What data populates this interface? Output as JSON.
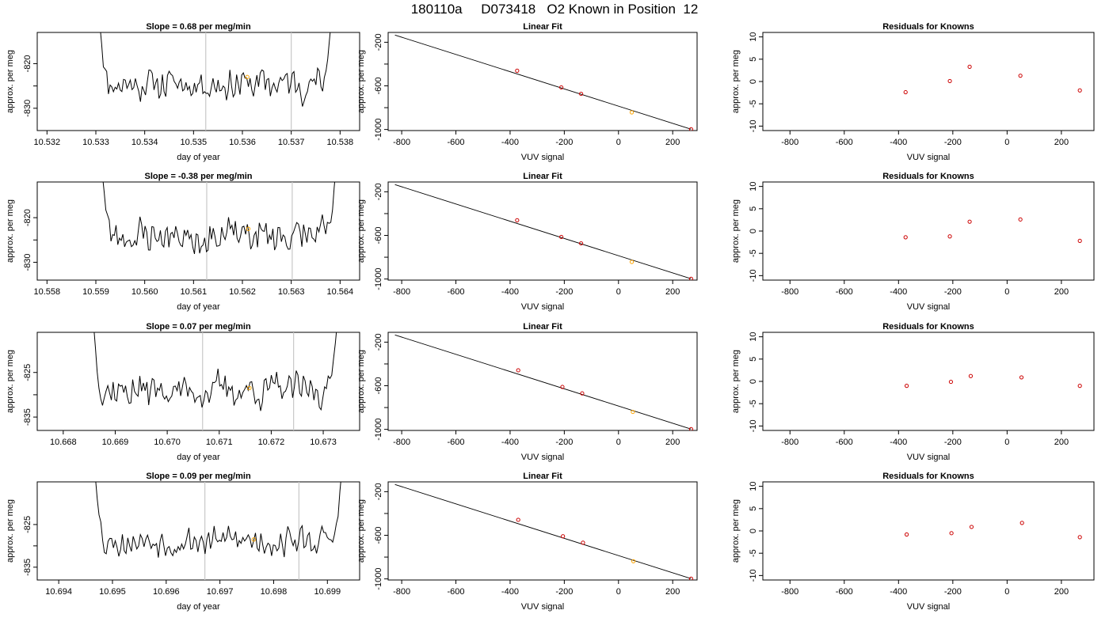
{
  "title": "180110a     D073418   O2 Known in Position  12",
  "colors": {
    "trace": "#000000",
    "marker": "#ffa500",
    "residual_points": "#cc0000",
    "fit_line": "#000000",
    "window_lines": "#c8c8c8",
    "frame": "#000000"
  },
  "chart_data": [
    {
      "type": "line",
      "row": 1,
      "col": 1,
      "title": "Slope =  0.68  per meg/min",
      "xlabel": "day of year",
      "ylabel": "approx. per meg",
      "xlim": [
        10.5318,
        10.5384
      ],
      "ylim": [
        -835,
        -813
      ],
      "xticks": [
        10.532,
        10.533,
        10.534,
        10.535,
        10.536,
        10.537,
        10.538
      ],
      "xtick_labels": [
        "10.532",
        "10.533",
        "10.534",
        "10.535",
        "10.536",
        "10.537",
        "10.538"
      ],
      "yticks": [
        -830,
        -825,
        -820
      ],
      "ytick_labels": [
        "-830",
        "",
        "-820"
      ],
      "window_lines_x": [
        10.53525,
        10.537
      ],
      "marker": {
        "x": 10.5361,
        "y": -823
      },
      "trace": {
        "start_x": 10.53305,
        "end_x": 10.53785,
        "n": 140,
        "mean": -824.5,
        "amplitude": 2.6,
        "seed": 11,
        "edge": "pre"
      }
    },
    {
      "type": "line",
      "row": 1,
      "col": 2,
      "title": "Linear Fit",
      "xlabel": "VUV signal",
      "ylabel": "approx. per meg",
      "xlim": [
        -850,
        290
      ],
      "ylim": [
        -1010,
        -110
      ],
      "xticks": [
        -800,
        -600,
        -400,
        -200,
        0,
        200
      ],
      "xtick_labels": [
        "-800",
        "-600",
        "-400",
        "-200",
        "0",
        "200"
      ],
      "yticks": [
        -1000,
        -800,
        -600,
        -400,
        -200
      ],
      "ytick_labels": [
        "-1000",
        "",
        "-600",
        "",
        "-200"
      ],
      "fit_line": {
        "x": [
          -825,
          268
        ],
        "y": [
          -134,
          -998
        ]
      },
      "points": {
        "x": [
          -374,
          -211,
          -138,
          49,
          268
        ],
        "y": [
          -461,
          -614,
          -673,
          -843,
          -998
        ]
      },
      "highlight_index": 3
    },
    {
      "type": "scatter",
      "row": 1,
      "col": 3,
      "title": "Residuals for Knowns",
      "xlabel": "VUV signal",
      "ylabel": "approx. per meg",
      "xlim": [
        -900,
        320
      ],
      "ylim": [
        -11,
        11
      ],
      "xticks": [
        -800,
        -600,
        -400,
        -200,
        0,
        200
      ],
      "xtick_labels": [
        "-800",
        "-600",
        "-400",
        "-200",
        "0",
        "200"
      ],
      "yticks": [
        -10,
        -5,
        0,
        5,
        10
      ],
      "ytick_labels": [
        "-10",
        "-5",
        "0",
        "5",
        "10"
      ],
      "points": {
        "x": [
          -374,
          -211,
          -138,
          49,
          268
        ],
        "y": [
          -2.4,
          0.1,
          3.3,
          1.3,
          -2.0
        ]
      }
    },
    {
      "type": "line",
      "row": 2,
      "col": 1,
      "title": "Slope =  -0.38  per meg/min",
      "xlabel": "day of year",
      "ylabel": "approx. per meg",
      "xlim": [
        10.5578,
        10.5644
      ],
      "ylim": [
        -834,
        -812
      ],
      "xticks": [
        10.558,
        10.559,
        10.56,
        10.561,
        10.562,
        10.563,
        10.564
      ],
      "xtick_labels": [
        "10.558",
        "10.559",
        "10.560",
        "10.561",
        "10.562",
        "10.563",
        "10.564"
      ],
      "yticks": [
        -830,
        -825,
        -820
      ],
      "ytick_labels": [
        "-830",
        "",
        "-820"
      ],
      "window_lines_x": [
        10.56127,
        10.56302
      ],
      "marker": {
        "x": 10.56212,
        "y": -822.5
      },
      "trace": {
        "start_x": 10.5591,
        "end_x": 10.56395,
        "n": 140,
        "mean": -824.0,
        "amplitude": 2.8,
        "seed": 23,
        "edge": "both"
      }
    },
    {
      "type": "line",
      "row": 2,
      "col": 2,
      "title": "Linear Fit",
      "xlabel": "VUV signal",
      "ylabel": "approx. per meg",
      "xlim": [
        -850,
        290
      ],
      "ylim": [
        -1010,
        -110
      ],
      "xticks": [
        -800,
        -600,
        -400,
        -200,
        0,
        200
      ],
      "xtick_labels": [
        "-800",
        "-600",
        "-400",
        "-200",
        "0",
        "200"
      ],
      "yticks": [
        -1000,
        -800,
        -600,
        -400,
        -200
      ],
      "ytick_labels": [
        "-1000",
        "",
        "-600",
        "",
        "-200"
      ],
      "fit_line": {
        "x": [
          -825,
          268
        ],
        "y": [
          -134,
          -998
        ]
      },
      "points": {
        "x": [
          -374,
          -211,
          -138,
          49,
          268
        ],
        "y": [
          -461,
          -614,
          -673,
          -843,
          -998
        ]
      },
      "highlight_index": 3
    },
    {
      "type": "scatter",
      "row": 2,
      "col": 3,
      "title": "Residuals for Knowns",
      "xlabel": "VUV signal",
      "ylabel": "approx. per meg",
      "xlim": [
        -900,
        320
      ],
      "ylim": [
        -11,
        11
      ],
      "xticks": [
        -800,
        -600,
        -400,
        -200,
        0,
        200
      ],
      "xtick_labels": [
        "-800",
        "-600",
        "-400",
        "-200",
        "0",
        "200"
      ],
      "yticks": [
        -10,
        -5,
        0,
        5,
        10
      ],
      "ytick_labels": [
        "-10",
        "-5",
        "0",
        "5",
        "10"
      ],
      "points": {
        "x": [
          -374,
          -211,
          -138,
          49,
          268
        ],
        "y": [
          -1.4,
          -1.2,
          2.1,
          2.6,
          -2.2
        ]
      }
    },
    {
      "type": "line",
      "row": 3,
      "col": 1,
      "title": "Slope =  0.07  per meg/min",
      "xlabel": "day of year",
      "ylabel": "approx. per meg",
      "xlim": [
        10.6675,
        10.6737
      ],
      "ylim": [
        -838,
        -816
      ],
      "xticks": [
        10.668,
        10.669,
        10.67,
        10.671,
        10.672,
        10.673
      ],
      "xtick_labels": [
        "10.668",
        "10.669",
        "10.670",
        "10.671",
        "10.672",
        "10.673"
      ],
      "yticks": [
        -835,
        -830,
        -825
      ],
      "ytick_labels": [
        "-835",
        "",
        "-825"
      ],
      "window_lines_x": [
        10.67068,
        10.67243
      ],
      "marker": {
        "x": 10.67158,
        "y": -828.5
      },
      "trace": {
        "start_x": 10.66855,
        "end_x": 10.6733,
        "n": 140,
        "mean": -829.0,
        "amplitude": 2.7,
        "seed": 37,
        "edge": "pre"
      }
    },
    {
      "type": "line",
      "row": 3,
      "col": 2,
      "title": "Linear Fit",
      "xlabel": "VUV signal",
      "ylabel": "approx. per meg",
      "xlim": [
        -850,
        290
      ],
      "ylim": [
        -1010,
        -110
      ],
      "xticks": [
        -800,
        -600,
        -400,
        -200,
        0,
        200
      ],
      "xtick_labels": [
        "-800",
        "-600",
        "-400",
        "-200",
        "0",
        "200"
      ],
      "yticks": [
        -1000,
        -800,
        -600,
        -400,
        -200
      ],
      "ytick_labels": [
        "-1000",
        "",
        "-600",
        "",
        "-200"
      ],
      "fit_line": {
        "x": [
          -825,
          268
        ],
        "y": [
          -134,
          -998
        ]
      },
      "points": {
        "x": [
          -370,
          -207,
          -134,
          53,
          268
        ],
        "y": [
          -458,
          -611,
          -670,
          -840,
          -998
        ]
      },
      "highlight_index": 3
    },
    {
      "type": "scatter",
      "row": 3,
      "col": 3,
      "title": "Residuals for Knowns",
      "xlabel": "VUV signal",
      "ylabel": "approx. per meg",
      "xlim": [
        -900,
        320
      ],
      "ylim": [
        -11,
        11
      ],
      "xticks": [
        -800,
        -600,
        -400,
        -200,
        0,
        200
      ],
      "xtick_labels": [
        "-800",
        "-600",
        "-400",
        "-200",
        "0",
        "200"
      ],
      "yticks": [
        -10,
        -5,
        0,
        5,
        10
      ],
      "ytick_labels": [
        "-10",
        "-5",
        "0",
        "5",
        "10"
      ],
      "points": {
        "x": [
          -370,
          -207,
          -134,
          53,
          268
        ],
        "y": [
          -1.0,
          -0.1,
          1.2,
          0.9,
          -1.0
        ]
      }
    },
    {
      "type": "line",
      "row": 4,
      "col": 1,
      "title": "Slope =  0.09  per meg/min",
      "xlabel": "day of year",
      "ylabel": "approx. per meg",
      "xlim": [
        10.6936,
        10.6996
      ],
      "ylim": [
        -838,
        -815
      ],
      "xticks": [
        10.694,
        10.695,
        10.696,
        10.697,
        10.698,
        10.699
      ],
      "xtick_labels": [
        "10.694",
        "10.695",
        "10.696",
        "10.697",
        "10.698",
        "10.699"
      ],
      "yticks": [
        -835,
        -830,
        -825
      ],
      "ytick_labels": [
        "-835",
        "",
        "-825"
      ],
      "window_lines_x": [
        10.69672,
        10.69847
      ],
      "marker": {
        "x": 10.69763,
        "y": -828.5
      },
      "trace": {
        "start_x": 10.69465,
        "end_x": 10.6993,
        "n": 140,
        "mean": -828.8,
        "amplitude": 2.4,
        "seed": 53,
        "edge": "both"
      }
    },
    {
      "type": "line",
      "row": 4,
      "col": 2,
      "title": "Linear Fit",
      "xlabel": "VUV signal",
      "ylabel": "approx. per meg",
      "xlim": [
        -850,
        290
      ],
      "ylim": [
        -1010,
        -110
      ],
      "xticks": [
        -800,
        -600,
        -400,
        -200,
        0,
        200
      ],
      "xtick_labels": [
        "-800",
        "-600",
        "-400",
        "-200",
        "0",
        "200"
      ],
      "yticks": [
        -1000,
        -800,
        -600,
        -400,
        -200
      ],
      "ytick_labels": [
        "-1000",
        "",
        "-600",
        "",
        "-200"
      ],
      "fit_line": {
        "x": [
          -825,
          268
        ],
        "y": [
          -134,
          -998
        ]
      },
      "points": {
        "x": [
          -370,
          -205,
          -131,
          55,
          268
        ],
        "y": [
          -458,
          -609,
          -668,
          -838,
          -998
        ]
      },
      "highlight_index": 3
    },
    {
      "type": "scatter",
      "row": 4,
      "col": 3,
      "title": "Residuals for Knowns",
      "xlabel": "VUV signal",
      "ylabel": "approx. per meg",
      "xlim": [
        -900,
        320
      ],
      "ylim": [
        -11,
        11
      ],
      "xticks": [
        -800,
        -600,
        -400,
        -200,
        0,
        200
      ],
      "xtick_labels": [
        "-800",
        "-600",
        "-400",
        "-200",
        "0",
        "200"
      ],
      "yticks": [
        -10,
        -5,
        0,
        5,
        10
      ],
      "ytick_labels": [
        "-10",
        "-5",
        "0",
        "5",
        "10"
      ],
      "points": {
        "x": [
          -370,
          -205,
          -131,
          55,
          268
        ],
        "y": [
          -0.8,
          -0.5,
          0.9,
          1.8,
          -1.4
        ]
      }
    }
  ]
}
